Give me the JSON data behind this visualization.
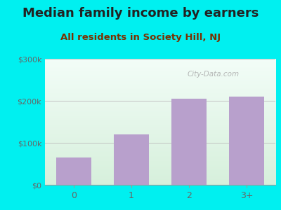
{
  "title": "Median family income by earners",
  "subtitle": "All residents in Society Hill, NJ",
  "categories": [
    "0",
    "1",
    "2",
    "3+"
  ],
  "values": [
    65000,
    120000,
    205000,
    210000
  ],
  "bar_color": "#b8a0cc",
  "background_outer": "#00f0f0",
  "title_color": "#222222",
  "subtitle_color": "#7a3000",
  "tick_label_color": "#666666",
  "ytick_labels": [
    "$0",
    "$100k",
    "$200k",
    "$300k"
  ],
  "ytick_values": [
    0,
    100000,
    200000,
    300000
  ],
  "ylim": [
    0,
    300000
  ],
  "watermark": "City-Data.com",
  "title_fontsize": 13,
  "subtitle_fontsize": 9.5,
  "gradient_top": "#f0faf5",
  "gradient_bottom": "#d8f0dc"
}
